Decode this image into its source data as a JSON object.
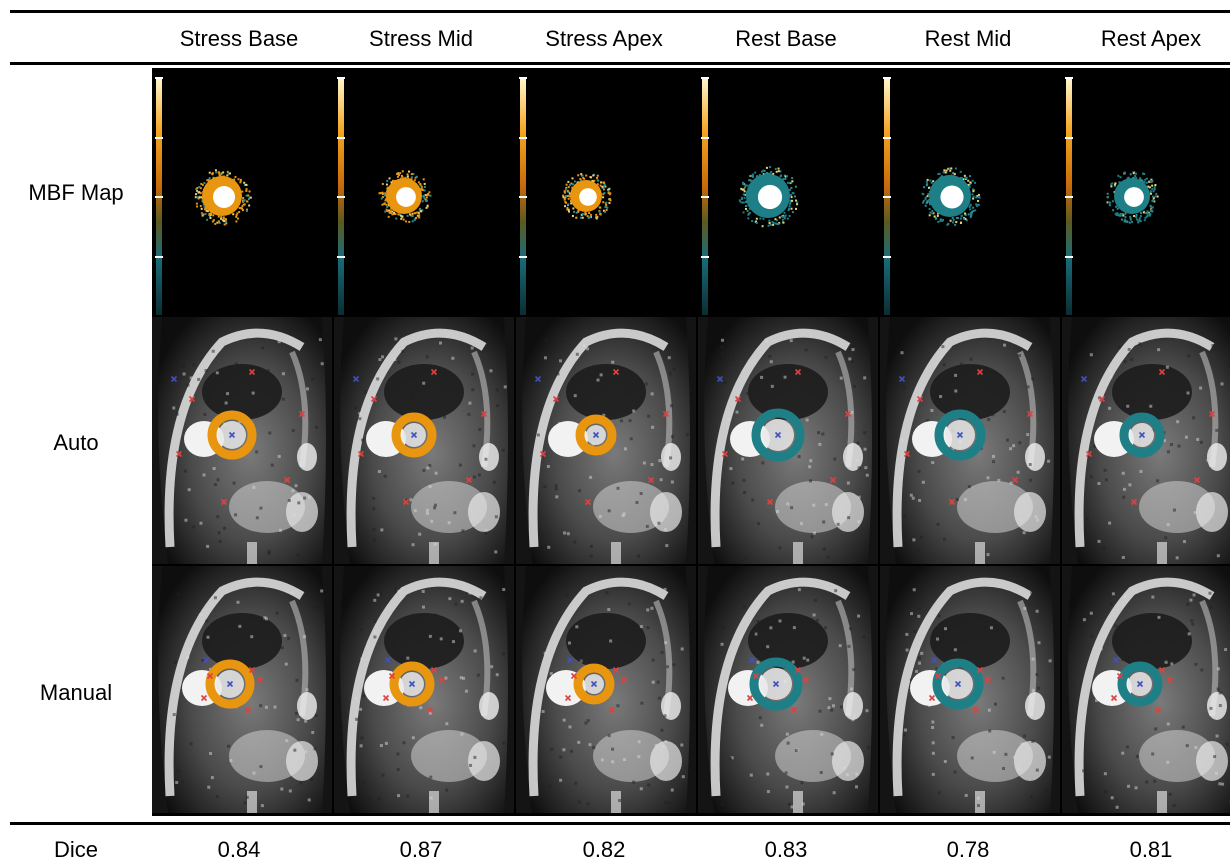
{
  "columns": [
    "Stress Base",
    "Stress Mid",
    "Stress Apex",
    "Rest Base",
    "Rest Mid",
    "Rest Apex"
  ],
  "rows": [
    "MBF Map",
    "Auto",
    "Manual"
  ],
  "dice": {
    "label": "Dice",
    "values": [
      "0.84",
      "0.87",
      "0.82",
      "0.83",
      "0.78",
      "0.81"
    ]
  },
  "colors": {
    "stress_overlay": "#e8950f",
    "rest_overlay": "#1f7f86",
    "auto_marker": "#e04040",
    "blue_marker": "#4050c0"
  }
}
